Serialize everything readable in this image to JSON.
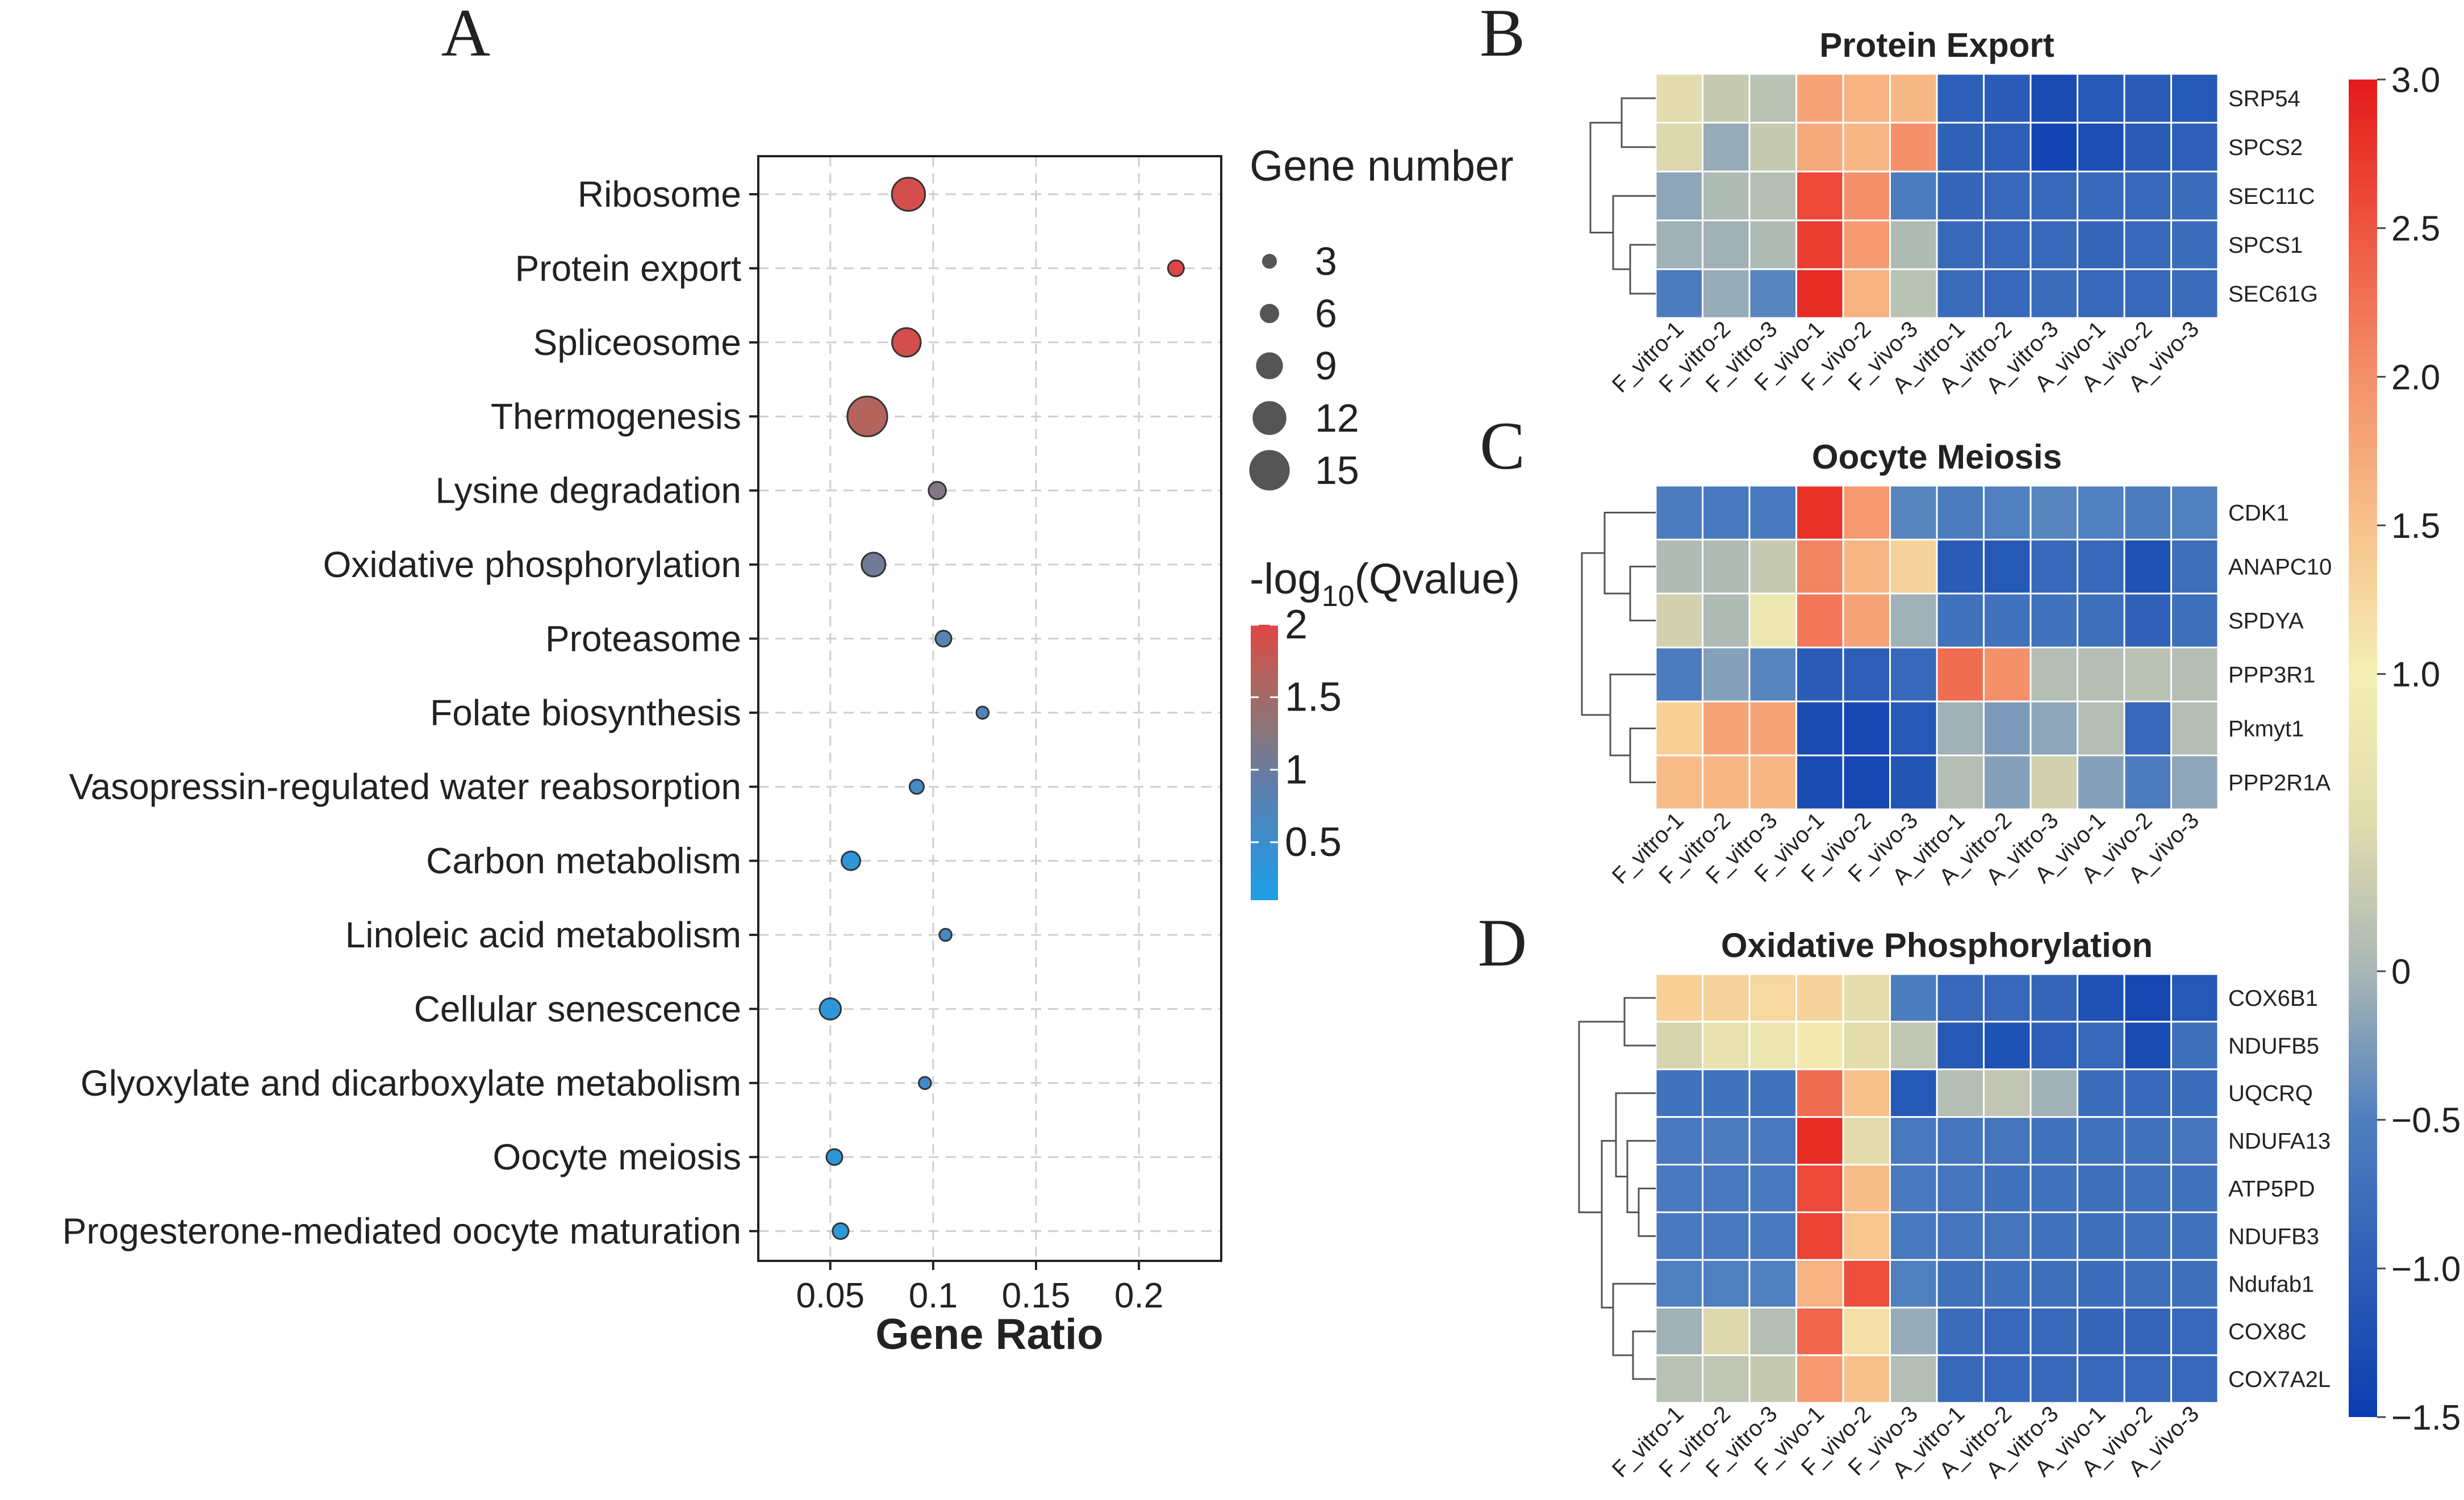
{
  "figure": {
    "panel_letters": [
      "A",
      "B",
      "C",
      "D"
    ]
  },
  "chart_data": [
    {
      "panel": "A",
      "type": "scatter",
      "title": "",
      "xlabel": "Gene Ratio",
      "ylabel": "",
      "xlim": [
        0.015,
        0.24
      ],
      "xticks": [
        0.05,
        0.1,
        0.15,
        0.2
      ],
      "xtick_labels": [
        "0.05",
        "0.1",
        "0.15",
        "0.2"
      ],
      "grid": true,
      "categories": [
        "Ribosome",
        "Protein export",
        "Spliceosome",
        "Thermogenesis",
        "Lysine degradation",
        "Oxidative phosphorylation",
        "Proteasome",
        "Folate biosynthesis",
        "Vasopressin-regulated water reabsorption",
        "Carbon metabolism",
        "Linoleic acid metabolism",
        "Cellular senescence",
        "Glyoxylate and dicarboxylate metabolism",
        "Oocyte meiosis",
        "Progesterone-mediated oocyte maturation"
      ],
      "gene_ratio": [
        0.088,
        0.218,
        0.087,
        0.068,
        0.102,
        0.071,
        0.105,
        0.124,
        0.092,
        0.06,
        0.106,
        0.05,
        0.096,
        0.052,
        0.055
      ],
      "gene_number": [
        12,
        4,
        10,
        15,
        5,
        8,
        4,
        2,
        3,
        6,
        2,
        7,
        2,
        4,
        4
      ],
      "neg_log10_q": [
        1.9,
        2.0,
        1.9,
        1.65,
        1.2,
        1.05,
        0.8,
        0.7,
        0.6,
        0.3,
        0.6,
        0.3,
        0.55,
        0.3,
        0.3
      ],
      "size_legend": {
        "title": "Gene number",
        "values": [
          3,
          6,
          9,
          12,
          15
        ],
        "labels": [
          "3",
          "6",
          "9",
          "12",
          "15"
        ]
      },
      "color_legend": {
        "title_prefix": "-log",
        "title_sub": "10",
        "title_suffix": "(Qvalue)",
        "range": [
          0.1,
          2.0
        ],
        "ticks": [
          2,
          1.5,
          1,
          0.5
        ],
        "tick_labels": [
          "2",
          "1.5",
          "1",
          "0.5"
        ],
        "colors": [
          "#1e9fe6",
          "#3a8fd0",
          "#5c7fae",
          "#86767f",
          "#b0655f",
          "#e04646"
        ]
      }
    },
    {
      "panel": "B",
      "type": "heatmap",
      "title": "Protein Export",
      "columns": [
        "F_vitro-1",
        "F_vitro-2",
        "F_vitro-3",
        "F_vivo-1",
        "F_vivo-2",
        "F_vivo-3",
        "A_vitro-1",
        "A_vitro-2",
        "A_vitro-3",
        "A_vivo-1",
        "A_vivo-2",
        "A_vivo-3"
      ],
      "rows": [
        "SRP54",
        "SPCS2",
        "SEC11C",
        "SPCS1",
        "SEC61G"
      ],
      "values": [
        [
          0.5,
          0.25,
          0.15,
          1.8,
          1.65,
          1.6,
          -1.0,
          -1.05,
          -1.3,
          -1.1,
          -1.05,
          -1.1
        ],
        [
          0.45,
          -0.1,
          0.25,
          1.75,
          1.6,
          2.0,
          -0.95,
          -1.0,
          -1.4,
          -1.25,
          -1.05,
          -1.0
        ],
        [
          -0.15,
          0.05,
          0.1,
          2.6,
          2.0,
          -0.55,
          -0.9,
          -0.85,
          -0.85,
          -0.85,
          -0.85,
          -0.8
        ],
        [
          -0.05,
          -0.05,
          0.05,
          2.7,
          1.9,
          0.05,
          -0.85,
          -0.85,
          -0.85,
          -0.9,
          -0.85,
          -0.8
        ],
        [
          -0.55,
          -0.1,
          -0.45,
          2.85,
          1.65,
          0.15,
          -0.8,
          -0.85,
          -0.8,
          -0.85,
          -0.85,
          -0.8
        ]
      ]
    },
    {
      "panel": "C",
      "type": "heatmap",
      "title": "Oocyte Meiosis",
      "columns": [
        "F_vitro-1",
        "F_vitro-2",
        "F_vitro-3",
        "F_vivo-1",
        "F_vivo-2",
        "F_vivo-3",
        "A_vitro-1",
        "A_vitro-2",
        "A_vitro-3",
        "A_vivo-1",
        "A_vivo-2",
        "A_vivo-3"
      ],
      "rows": [
        "CDK1",
        "ANAPC10",
        "SPDYA",
        "PPP3R1",
        "Pkmyt1",
        "PPP2R1A"
      ],
      "values": [
        [
          -0.55,
          -0.6,
          -0.6,
          2.8,
          1.9,
          -0.45,
          -0.55,
          -0.5,
          -0.45,
          -0.5,
          -0.55,
          -0.5
        ],
        [
          0.05,
          0.05,
          0.25,
          2.1,
          1.6,
          1.3,
          -1.05,
          -1.1,
          -0.85,
          -0.85,
          -1.2,
          -0.75
        ],
        [
          0.35,
          0.05,
          0.8,
          2.2,
          1.8,
          -0.05,
          -0.7,
          -0.7,
          -0.7,
          -0.75,
          -0.95,
          -0.75
        ],
        [
          -0.55,
          -0.2,
          -0.45,
          -1.05,
          -1.0,
          -0.85,
          2.3,
          2.0,
          0.1,
          0.1,
          0.15,
          0.1
        ],
        [
          1.35,
          1.8,
          1.8,
          -1.3,
          -1.35,
          -1.1,
          -0.05,
          -0.25,
          -0.15,
          0.1,
          -0.85,
          0.1
        ],
        [
          1.55,
          1.6,
          1.6,
          -1.3,
          -1.35,
          -1.15,
          0.1,
          -0.2,
          0.35,
          -0.2,
          -0.55,
          -0.15
        ]
      ]
    },
    {
      "panel": "D",
      "type": "heatmap",
      "title": "Oxidative Phosphorylation",
      "columns": [
        "F_vitro-1",
        "F_vitro-2",
        "F_vitro-3",
        "F_vivo-1",
        "F_vivo-2",
        "F_vivo-3",
        "A_vitro-1",
        "A_vitro-2",
        "A_vitro-3",
        "A_vivo-1",
        "A_vivo-2",
        "A_vivo-3"
      ],
      "rows": [
        "COX6B1",
        "NDUFB5",
        "UQCRQ",
        "NDUFA13",
        "ATP5PD",
        "NDUFB3",
        "Ndufab1",
        "COX8C",
        "COX7A2L"
      ],
      "values": [
        [
          1.35,
          1.3,
          1.25,
          1.3,
          0.55,
          -0.55,
          -0.85,
          -0.85,
          -0.9,
          -1.2,
          -1.35,
          -1.1
        ],
        [
          0.4,
          0.65,
          0.75,
          1.05,
          0.55,
          0.2,
          -1.1,
          -1.2,
          -1.0,
          -0.85,
          -1.3,
          -0.75
        ],
        [
          -0.7,
          -0.7,
          -0.7,
          2.3,
          1.5,
          -1.1,
          0.1,
          0.2,
          -0.05,
          -0.8,
          -0.85,
          -0.8
        ],
        [
          -0.6,
          -0.55,
          -0.6,
          2.85,
          0.5,
          -0.6,
          -0.65,
          -0.65,
          -0.7,
          -0.7,
          -0.7,
          -0.65
        ],
        [
          -0.6,
          -0.6,
          -0.6,
          2.6,
          1.55,
          -0.6,
          -0.65,
          -0.7,
          -0.7,
          -0.75,
          -0.7,
          -0.7
        ],
        [
          -0.6,
          -0.6,
          -0.6,
          2.65,
          1.45,
          -0.6,
          -0.65,
          -0.65,
          -0.7,
          -0.75,
          -0.7,
          -0.7
        ],
        [
          -0.5,
          -0.5,
          -0.5,
          1.65,
          2.55,
          -0.5,
          -0.7,
          -0.7,
          -0.75,
          -0.8,
          -0.75,
          -0.75
        ],
        [
          -0.05,
          0.45,
          0.1,
          2.35,
          1.15,
          -0.1,
          -0.8,
          -0.85,
          -0.85,
          -0.9,
          -0.9,
          -0.85
        ],
        [
          0.15,
          0.2,
          0.25,
          1.9,
          1.5,
          0.1,
          -0.85,
          -0.85,
          -0.85,
          -0.85,
          -0.85,
          -0.85
        ]
      ]
    },
    {
      "panel": "colorbar",
      "type": "heatmap-legend",
      "range": [
        -1.5,
        3.0
      ],
      "ticks": [
        3.0,
        2.5,
        2.0,
        1.5,
        1.0,
        0,
        -0.5,
        -1.0,
        -1.5
      ],
      "tick_labels": [
        "3.0",
        "2.5",
        "2.0",
        "1.5",
        "1.0",
        "0",
        "−0.5",
        "−1.0",
        "−1.5"
      ],
      "stops": [
        {
          "v": -1.5,
          "c": "#0b3eb0"
        },
        {
          "v": -0.5,
          "c": "#4f7fbf"
        },
        {
          "v": 0.0,
          "c": "#a9b7b6"
        },
        {
          "v": 0.5,
          "c": "#e2dcae"
        },
        {
          "v": 1.0,
          "c": "#f4efb4"
        },
        {
          "v": 1.5,
          "c": "#f8c18b"
        },
        {
          "v": 2.0,
          "c": "#f4906a"
        },
        {
          "v": 2.5,
          "c": "#ee5540"
        },
        {
          "v": 3.0,
          "c": "#e41a1a"
        }
      ]
    }
  ]
}
